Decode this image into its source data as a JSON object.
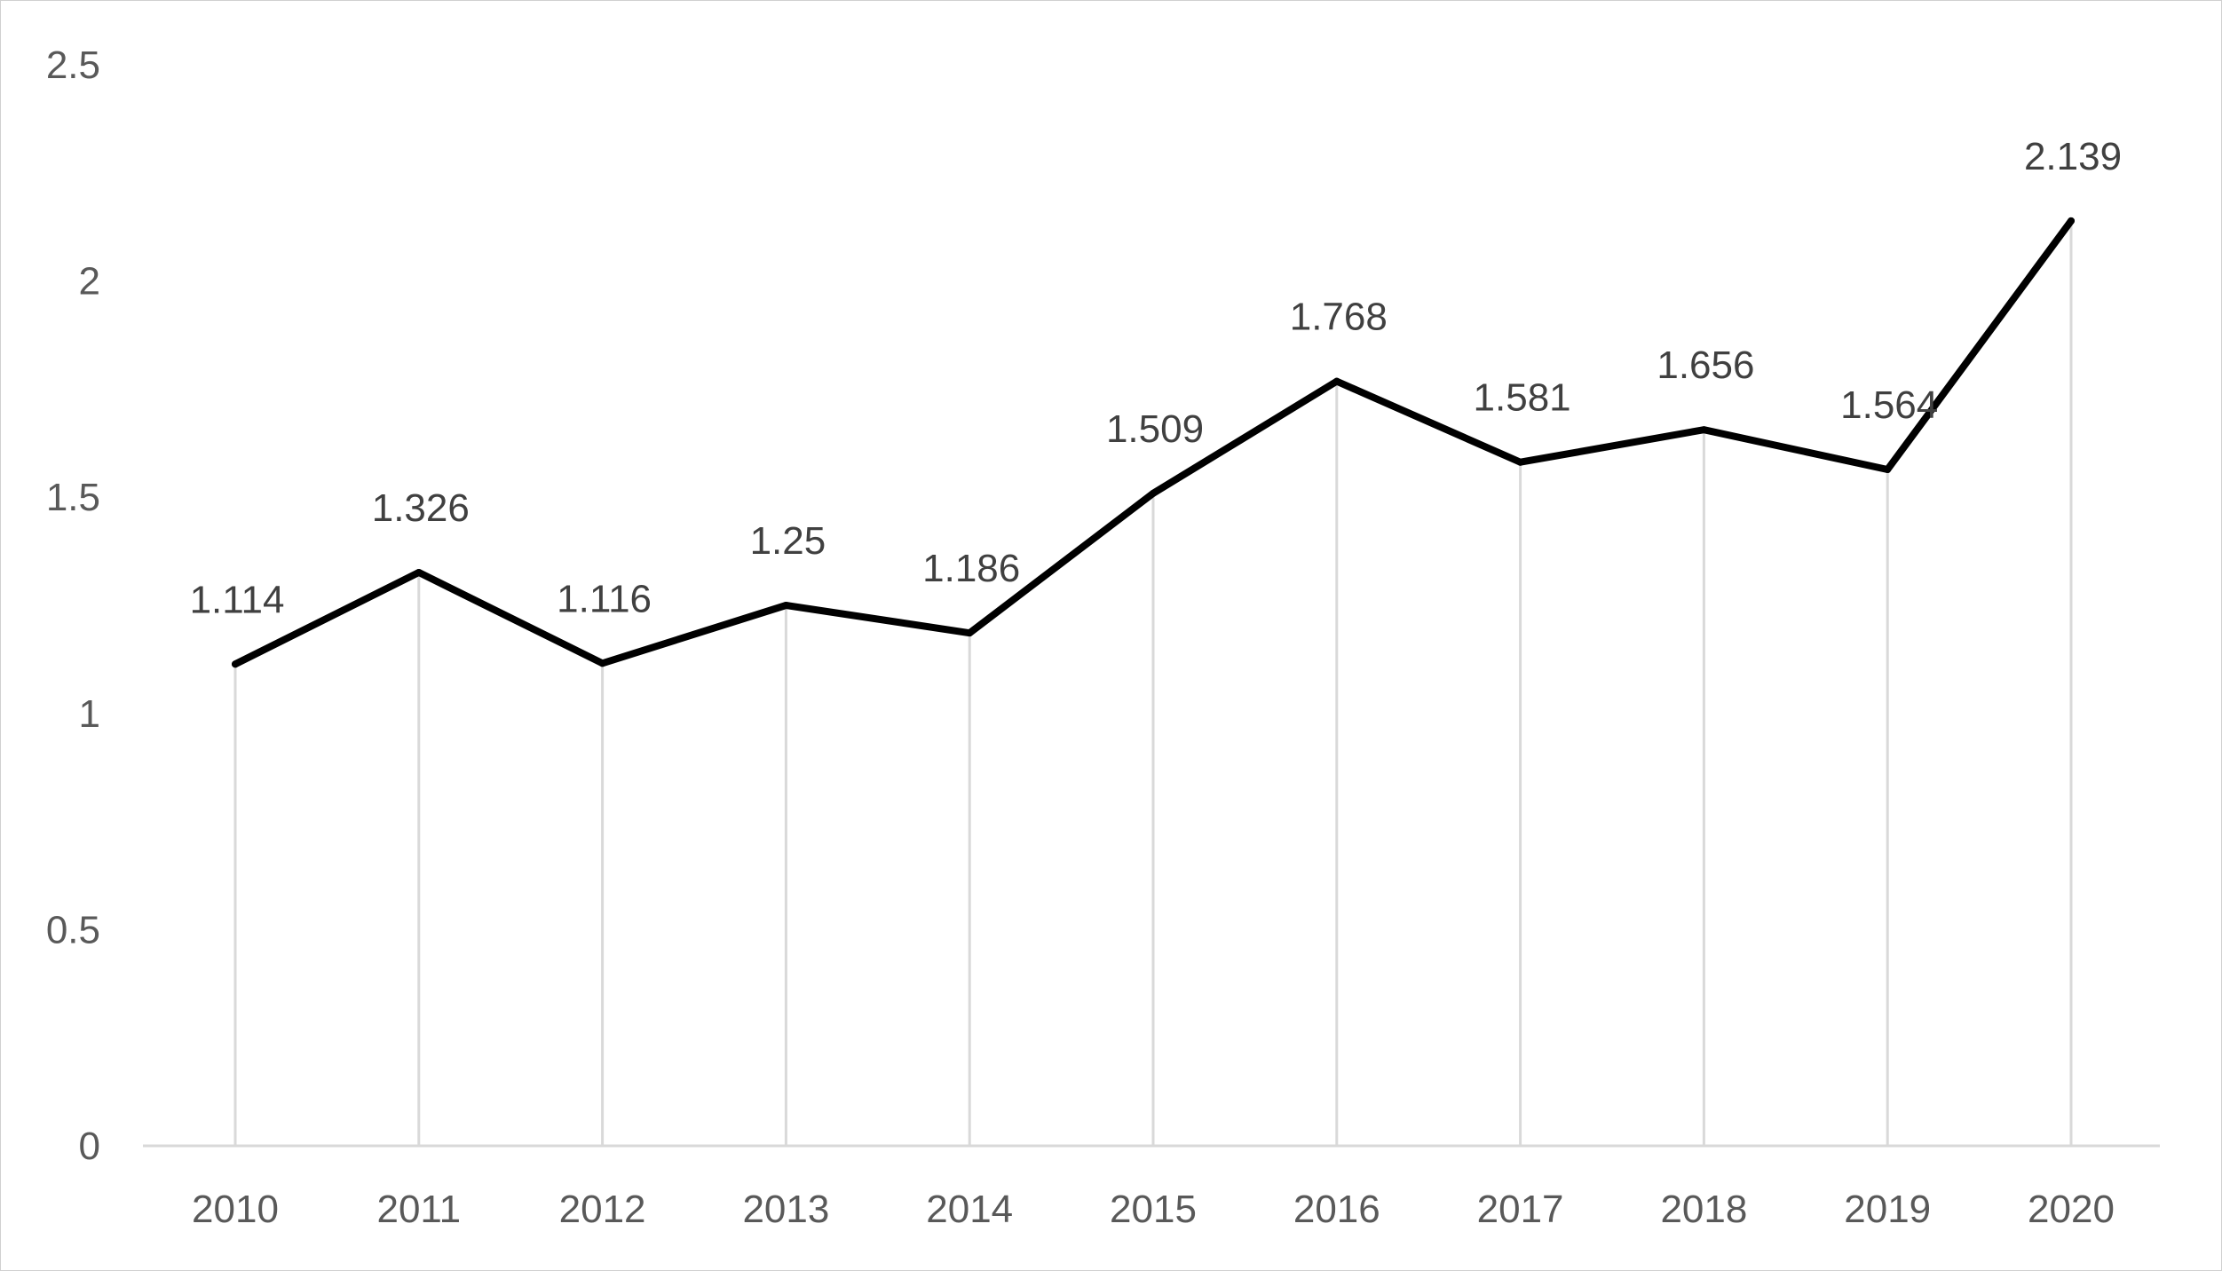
{
  "chart_data": {
    "type": "line",
    "title": "",
    "xlabel": "",
    "ylabel": "",
    "categories": [
      "2010",
      "2011",
      "2012",
      "2013",
      "2014",
      "2015",
      "2016",
      "2017",
      "2018",
      "2019",
      "2020"
    ],
    "series": [
      {
        "values": [
          1.114,
          1.326,
          1.116,
          1.25,
          1.186,
          1.509,
          1.768,
          1.581,
          1.656,
          1.564,
          2.139
        ],
        "data_labels": [
          "1.114",
          "1.326",
          "1.116",
          "1.25",
          "1.186",
          "1.509",
          "1.768",
          "1.581",
          "1.656",
          "1.564",
          "2.139"
        ],
        "color": "#000000"
      }
    ],
    "ylim": [
      0,
      2.5
    ],
    "y_ticks": [
      "0",
      "0.5",
      "1",
      "1.5",
      "2",
      "2.5"
    ],
    "grid": "vertical drop lines at each category",
    "legend": "none",
    "colors": {
      "line": "#000000",
      "drop_lines": "#d9d9d9",
      "axis": "#d9d9d9",
      "tick_text": "#595959",
      "data_label_text": "#404040"
    }
  }
}
